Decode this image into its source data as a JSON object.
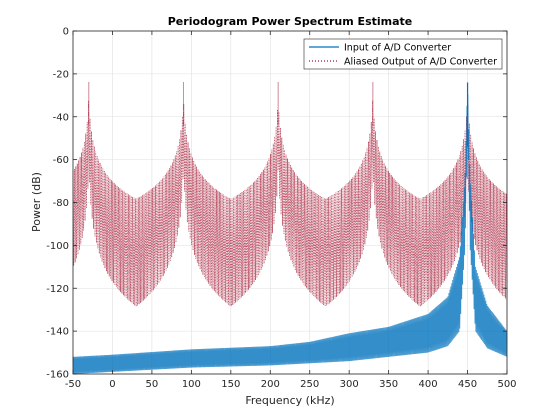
{
  "chart_data": {
    "type": "line",
    "title": "Periodogram Power Spectrum Estimate",
    "xlabel": "Frequency (kHz)",
    "ylabel": "Power (dB)",
    "xlim": [
      -50,
      500
    ],
    "ylim": [
      -160,
      0
    ],
    "xticks": [
      -50,
      0,
      50,
      100,
      150,
      200,
      250,
      300,
      350,
      400,
      450,
      500
    ],
    "yticks": [
      -160,
      -140,
      -120,
      -100,
      -80,
      -60,
      -40,
      -20,
      0
    ],
    "grid": true,
    "legend_position": "top-right",
    "series": [
      {
        "name": "Input of A/D Converter",
        "color": "#0072BD",
        "style": "solid",
        "peaks": [
          {
            "x": 450,
            "y": -24
          }
        ],
        "x": [
          -50,
          0,
          100,
          200,
          250,
          300,
          350,
          400,
          425,
          440,
          447,
          450,
          453,
          460,
          475,
          500
        ],
        "upper": [
          -152,
          -151,
          -148.5,
          -147,
          -145,
          -141,
          -138,
          -132,
          -124,
          -105,
          -65,
          -24,
          -65,
          -110,
          -128,
          -140
        ],
        "lower": [
          -160,
          -159,
          -157,
          -156,
          -155,
          -154,
          -152,
          -150,
          -147,
          -140,
          -100,
          -40,
          -100,
          -140,
          -148,
          -152
        ]
      },
      {
        "name": "Aliased Output of A/D Converter",
        "color": "#A2142F",
        "style": "dotted",
        "peaks": [
          {
            "x": -30,
            "y": -24
          },
          {
            "x": 90,
            "y": -24
          },
          {
            "x": 210,
            "y": -24
          },
          {
            "x": 330,
            "y": -24
          },
          {
            "x": 450,
            "y": -24
          }
        ],
        "floor_upper_x": [
          -50,
          0,
          50,
          100,
          150,
          200,
          250,
          300,
          350,
          400,
          450,
          500
        ],
        "floor_upper": [
          -128,
          -130,
          -132,
          -133,
          -134,
          -134,
          -134,
          -133,
          -131,
          -128,
          -124,
          -128
        ],
        "floor_lower": [
          -154,
          -157,
          -158,
          -157,
          -156,
          -155,
          -153,
          -151,
          -149,
          -146,
          -143,
          -150
        ]
      }
    ]
  }
}
